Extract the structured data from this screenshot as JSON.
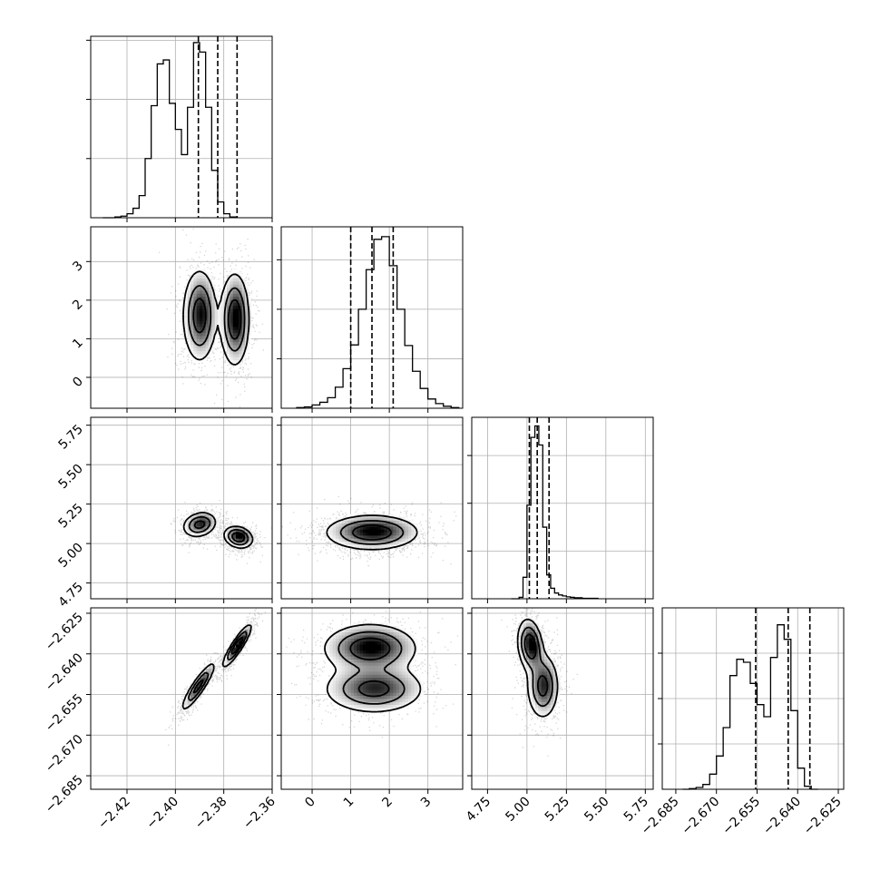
{
  "chart_data": {
    "type": "corner",
    "grid": true,
    "parameters": [
      {
        "index": 0,
        "range": [
          -2.435,
          -2.36
        ],
        "ticks": [
          -2.42,
          -2.4,
          -2.38,
          -2.36
        ],
        "tick_labels": [
          "−2.42",
          "−2.40",
          "−2.38",
          "−2.36"
        ],
        "quantiles": [
          -2.3905,
          -2.3825,
          -2.3745
        ],
        "hist": {
          "edges_start": -2.43,
          "bin_width": 0.0025,
          "counts": [
            0,
            0,
            1,
            2,
            5,
            12,
            28,
            75,
            142,
            195,
            200,
            145,
            112,
            80,
            140,
            222,
            210,
            140,
            60,
            20,
            5,
            1
          ],
          "ymax": 230
        }
      },
      {
        "index": 1,
        "range": [
          -0.8,
          3.9
        ],
        "ticks": [
          0,
          1,
          2,
          3
        ],
        "tick_labels": [
          "0",
          "1",
          "2",
          "3"
        ],
        "quantiles": [
          1.0,
          1.55,
          2.1
        ],
        "hist": {
          "edges_start": -0.4,
          "bin_width": 0.2,
          "counts": [
            1,
            2,
            5,
            9,
            16,
            32,
            60,
            96,
            150,
            210,
            256,
            260,
            216,
            150,
            95,
            56,
            30,
            14,
            7,
            3,
            1
          ],
          "ymax": 275
        }
      },
      {
        "index": 2,
        "range": [
          4.65,
          5.8
        ],
        "ticks": [
          4.75,
          5.0,
          5.25,
          5.5,
          5.75
        ],
        "tick_labels": [
          "4.75",
          "5.00",
          "5.25",
          "5.50",
          "5.75"
        ],
        "quantiles": [
          5.015,
          5.065,
          5.14
        ],
        "hist": {
          "edges_start": 4.9,
          "bin_width": 0.025,
          "counts": [
            0,
            0,
            3,
            45,
            196,
            338,
            362,
            322,
            150,
            50,
            22,
            12,
            8,
            6,
            4,
            3,
            2,
            2,
            1,
            1,
            1,
            1
          ],
          "ymax": 380
        }
      },
      {
        "index": 3,
        "range": [
          -2.69,
          -2.623
        ],
        "ticks": [
          -2.685,
          -2.67,
          -2.655,
          -2.64,
          -2.625
        ],
        "tick_labels": [
          "−2.685",
          "−2.670",
          "−2.655",
          "−2.640",
          "−2.625"
        ],
        "quantiles": [
          -2.6555,
          -2.6435,
          -2.6355
        ],
        "hist": {
          "edges_start": -2.6825,
          "bin_width": 0.0025,
          "counts": [
            0,
            1,
            3,
            8,
            25,
            55,
            102,
            188,
            215,
            210,
            175,
            140,
            120,
            218,
            272,
            248,
            130,
            35,
            5,
            0
          ],
          "ymax": 300
        }
      }
    ],
    "density_2d": [
      {
        "row": 1,
        "col": 0,
        "modes": [
          {
            "x": -2.39,
            "y": 1.6,
            "sx": 0.0035,
            "sy": 0.6,
            "rho": 0.0,
            "w": 1.0
          },
          {
            "x": -2.3755,
            "y": 1.5,
            "sx": 0.003,
            "sy": 0.6,
            "rho": 0.0,
            "w": 1.1
          }
        ]
      },
      {
        "row": 2,
        "col": 0,
        "modes": [
          {
            "x": -2.39,
            "y": 5.12,
            "sx": 0.0035,
            "sy": 0.04,
            "rho": 0.2,
            "w": 1.0
          },
          {
            "x": -2.374,
            "y": 5.04,
            "sx": 0.003,
            "sy": 0.035,
            "rho": -0.2,
            "w": 1.2
          }
        ]
      },
      {
        "row": 3,
        "col": 0,
        "modes": [
          {
            "x": -2.3905,
            "y": -2.652,
            "sx": 0.0035,
            "sy": 0.0045,
            "rho": 0.9,
            "w": 1.0
          },
          {
            "x": -2.3745,
            "y": -2.637,
            "sx": 0.003,
            "sy": 0.004,
            "rho": 0.9,
            "w": 1.2
          }
        ]
      },
      {
        "row": 2,
        "col": 1,
        "modes": [
          {
            "x": 1.55,
            "y": 5.07,
            "sx": 0.6,
            "sy": 0.055,
            "rho": 0.0,
            "w": 1.0
          }
        ]
      },
      {
        "row": 3,
        "col": 1,
        "modes": [
          {
            "x": 1.5,
            "y": -2.638,
            "sx": 0.6,
            "sy": 0.0045,
            "rho": 0.0,
            "w": 1.2
          },
          {
            "x": 1.6,
            "y": -2.653,
            "sx": 0.65,
            "sy": 0.0045,
            "rho": 0.0,
            "w": 1.0
          }
        ]
      },
      {
        "row": 3,
        "col": 2,
        "modes": [
          {
            "x": 5.02,
            "y": -2.637,
            "sx": 0.04,
            "sy": 0.005,
            "rho": -0.2,
            "w": 1.2
          },
          {
            "x": 5.1,
            "y": -2.652,
            "sx": 0.05,
            "sy": 0.006,
            "rho": 0.0,
            "w": 1.0
          }
        ]
      }
    ]
  }
}
